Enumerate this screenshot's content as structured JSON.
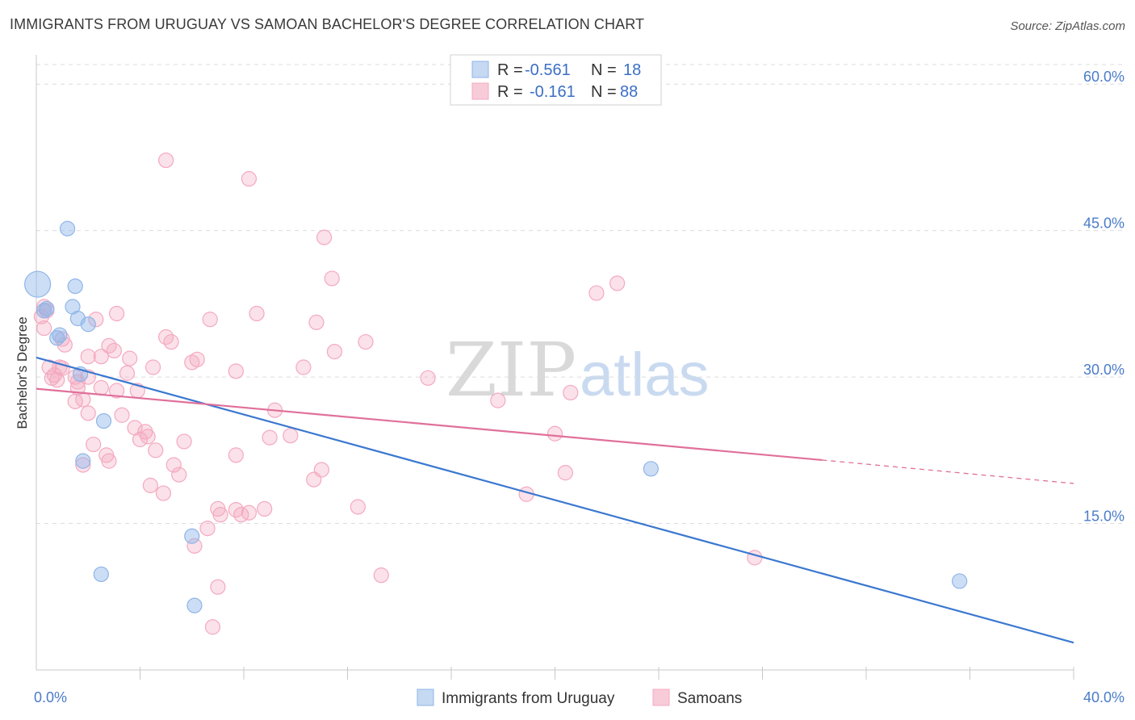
{
  "chart_data": {
    "type": "scatter",
    "title": "IMMIGRANTS FROM URUGUAY VS SAMOAN BACHELOR'S DEGREE CORRELATION CHART",
    "source": "Source: ZipAtlas.com",
    "ylabel": "Bachelor's Degree",
    "xlim": [
      0,
      40
    ],
    "ylim": [
      0,
      62
    ],
    "x_tick_labels": [
      "0.0%",
      "40.0%"
    ],
    "y_ticks": [
      15,
      30,
      45,
      60
    ],
    "y_tick_labels": [
      "15.0%",
      "30.0%",
      "45.0%",
      "60.0%"
    ],
    "grid": "horizontal dashed",
    "legend_placement": "top-center",
    "watermark": {
      "zip": "ZIP",
      "atlas": "atlas"
    },
    "stats": [
      {
        "r_label": "R =",
        "r_value": "-0.561",
        "n_label": "N =",
        "n_value": "18"
      },
      {
        "r_label": "R =",
        "r_value": "-0.161",
        "n_label": "N =",
        "n_value": "88"
      }
    ],
    "series": [
      {
        "name": "Immigrants from Uruguay",
        "color": "#8fb5e8",
        "line_color": "#3b78d0",
        "trend": {
          "x0": 0,
          "y0": 32.0,
          "x1": 40,
          "y1": 2.8
        },
        "points": [
          [
            0.05,
            39.5
          ],
          [
            1.2,
            45.2
          ],
          [
            1.5,
            39.3
          ],
          [
            0.4,
            37.0
          ],
          [
            1.4,
            37.2
          ],
          [
            1.6,
            36.0
          ],
          [
            2.0,
            35.4
          ],
          [
            0.9,
            34.3
          ],
          [
            0.8,
            34.0
          ],
          [
            1.7,
            30.3
          ],
          [
            2.6,
            25.5
          ],
          [
            1.8,
            21.4
          ],
          [
            6.0,
            13.7
          ],
          [
            2.5,
            9.8
          ],
          [
            6.1,
            6.6
          ],
          [
            23.7,
            20.6
          ],
          [
            35.6,
            9.1
          ],
          [
            0.3,
            36.8
          ]
        ],
        "big_point_index": 0
      },
      {
        "name": "Samoans",
        "color": "#f4a9c0",
        "line_color": "#e0709a",
        "trend": {
          "x0": 0,
          "y0": 28.8,
          "x1": 30.3,
          "y1": 21.5
        },
        "trend_dashed": {
          "x0": 30.3,
          "y0": 21.5,
          "x1": 40,
          "y1": 19.1
        },
        "points": [
          [
            0.2,
            36.2
          ],
          [
            0.4,
            36.8
          ],
          [
            0.3,
            35.0
          ],
          [
            2.3,
            35.9
          ],
          [
            3.1,
            36.5
          ],
          [
            5.0,
            52.2
          ],
          [
            8.2,
            50.3
          ],
          [
            11.1,
            44.3
          ],
          [
            11.4,
            40.1
          ],
          [
            21.6,
            38.6
          ],
          [
            22.4,
            39.6
          ],
          [
            6.7,
            35.9
          ],
          [
            8.5,
            36.5
          ],
          [
            10.8,
            35.6
          ],
          [
            1.0,
            33.9
          ],
          [
            1.1,
            33.3
          ],
          [
            2.8,
            33.2
          ],
          [
            3.0,
            32.7
          ],
          [
            5.0,
            34.1
          ],
          [
            5.2,
            33.6
          ],
          [
            12.7,
            33.6
          ],
          [
            2.5,
            32.1
          ],
          [
            2.0,
            32.1
          ],
          [
            3.6,
            31.9
          ],
          [
            6.2,
            31.8
          ],
          [
            6.0,
            31.5
          ],
          [
            0.5,
            31.0
          ],
          [
            1.0,
            30.9
          ],
          [
            1.5,
            30.0
          ],
          [
            3.5,
            30.4
          ],
          [
            4.5,
            31.0
          ],
          [
            7.7,
            30.6
          ],
          [
            10.3,
            31.0
          ],
          [
            11.5,
            32.6
          ],
          [
            15.1,
            29.9
          ],
          [
            0.6,
            29.9
          ],
          [
            0.8,
            29.7
          ],
          [
            1.6,
            29.5
          ],
          [
            0.7,
            30.2
          ],
          [
            1.6,
            28.9
          ],
          [
            2.5,
            28.9
          ],
          [
            3.1,
            28.6
          ],
          [
            3.9,
            28.6
          ],
          [
            1.8,
            27.7
          ],
          [
            1.5,
            27.5
          ],
          [
            2.0,
            26.3
          ],
          [
            3.3,
            26.1
          ],
          [
            9.2,
            26.6
          ],
          [
            17.8,
            27.6
          ],
          [
            20.6,
            28.4
          ],
          [
            3.8,
            24.8
          ],
          [
            4.2,
            24.4
          ],
          [
            4.3,
            23.9
          ],
          [
            4.0,
            23.6
          ],
          [
            5.7,
            23.4
          ],
          [
            9.0,
            23.8
          ],
          [
            9.8,
            24.0
          ],
          [
            20.0,
            24.2
          ],
          [
            2.2,
            23.1
          ],
          [
            4.6,
            22.5
          ],
          [
            7.7,
            22.0
          ],
          [
            2.7,
            22.0
          ],
          [
            2.8,
            21.4
          ],
          [
            5.3,
            21.0
          ],
          [
            5.5,
            20.0
          ],
          [
            11.0,
            20.5
          ],
          [
            10.7,
            19.5
          ],
          [
            18.9,
            18.0
          ],
          [
            20.4,
            20.2
          ],
          [
            4.4,
            18.9
          ],
          [
            4.9,
            18.1
          ],
          [
            7.0,
            16.5
          ],
          [
            7.7,
            16.4
          ],
          [
            7.9,
            15.9
          ],
          [
            8.2,
            16.1
          ],
          [
            7.1,
            15.9
          ],
          [
            8.8,
            16.5
          ],
          [
            12.4,
            16.7
          ],
          [
            6.6,
            14.5
          ],
          [
            6.1,
            12.7
          ],
          [
            27.7,
            11.5
          ],
          [
            13.3,
            9.7
          ],
          [
            7.0,
            8.5
          ],
          [
            6.8,
            4.4
          ],
          [
            1.8,
            21.0
          ],
          [
            0.9,
            31.0
          ],
          [
            2.0,
            30.0
          ],
          [
            0.3,
            37.2
          ]
        ]
      }
    ]
  }
}
